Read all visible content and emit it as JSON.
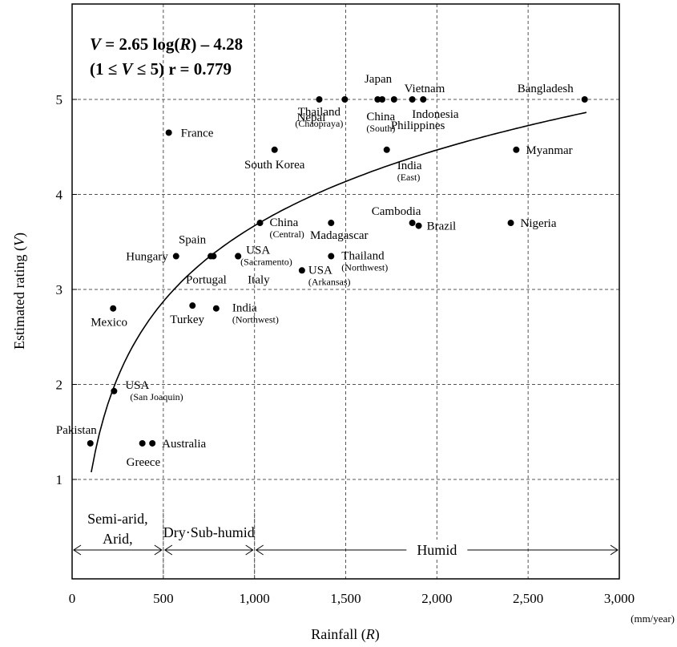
{
  "chart_data": {
    "type": "scatter",
    "xlabel_text": "Rainfall (",
    "xlabel_var": "R",
    "xlabel_close": ")",
    "ylabel_text": "Estimated rating (",
    "ylabel_var": "V",
    "ylabel_close": ")",
    "unit": "(mm/year)",
    "xlim": [
      0,
      3000
    ],
    "ylim": [
      0,
      6
    ],
    "x_ticks": [
      {
        "value": 0,
        "label": "0"
      },
      {
        "value": 500,
        "label": "500"
      },
      {
        "value": 1000,
        "label": "1,000"
      },
      {
        "value": 1500,
        "label": "1,500"
      },
      {
        "value": 2000,
        "label": "2,000"
      },
      {
        "value": 2500,
        "label": "2,500"
      },
      {
        "value": 3000,
        "label": "3,000"
      }
    ],
    "y_ticks": [
      {
        "value": 1,
        "label": "1"
      },
      {
        "value": 2,
        "label": "2"
      },
      {
        "value": 3,
        "label": "3"
      },
      {
        "value": 4,
        "label": "4"
      },
      {
        "value": 5,
        "label": "5"
      }
    ],
    "grid": true,
    "equation": {
      "line1_var": "V",
      "line1_mid": " = 2.65 log(",
      "line1_var2": "R",
      "line1_end": ") – 4.28",
      "line2_open": "(1 ≤ ",
      "line2_var": "V",
      "line2_end": " ≤ 5) r = 0.779"
    },
    "fit": {
      "a": 2.65,
      "b": -4.28,
      "x_range": [
        105,
        2820
      ]
    },
    "regions": [
      {
        "label_lines": [
          "Semi-arid,",
          "Arid,"
        ],
        "x_from": 0,
        "x_to": 500
      },
      {
        "label_lines": [
          "Dry·Sub-humid"
        ],
        "x_from": 500,
        "x_to": 1000
      },
      {
        "label_lines": [
          "Humid"
        ],
        "x_from": 1000,
        "x_to": 3000
      }
    ],
    "points": [
      {
        "name": "Pakistan",
        "sub": "",
        "x": 100,
        "y": 1.38
      },
      {
        "name": "Australia",
        "sub": "",
        "x": 440,
        "y": 1.38
      },
      {
        "name": "Greece",
        "sub": "",
        "x": 385,
        "y": 1.38
      },
      {
        "name": "USA",
        "sub": "(San Joaquin)",
        "x": 230,
        "y": 1.93
      },
      {
        "name": "Mexico",
        "sub": "",
        "x": 225,
        "y": 2.8
      },
      {
        "name": "Turkey",
        "sub": "",
        "x": 660,
        "y": 2.83
      },
      {
        "name": "India",
        "sub": "(Northwest)",
        "x": 790,
        "y": 2.8
      },
      {
        "name": "Hungary",
        "sub": "",
        "x": 570,
        "y": 3.35
      },
      {
        "name": "Spain",
        "sub": "",
        "x": 760,
        "y": 3.35
      },
      {
        "name": "Portugal",
        "sub": "",
        "x": 775,
        "y": 3.35
      },
      {
        "name": "USA",
        "sub": "(Sacramento)",
        "x": 910,
        "y": 3.35
      },
      {
        "name": "Italy",
        "sub": "",
        "x": 910,
        "y": 3.35
      },
      {
        "name": "China",
        "sub": "(Central)",
        "x": 1030,
        "y": 3.7
      },
      {
        "name": "France",
        "sub": "",
        "x": 530,
        "y": 4.65
      },
      {
        "name": "South Korea",
        "sub": "",
        "x": 1110,
        "y": 4.47
      },
      {
        "name": "Nepal",
        "sub": "",
        "x": 1355,
        "y": 5.0
      },
      {
        "name": "Thailand",
        "sub": "(Chaopraya)",
        "x": 1495,
        "y": 5.0
      },
      {
        "name": "China",
        "sub": "(South)",
        "x": 1675,
        "y": 5.0
      },
      {
        "name": "Japan",
        "sub": "",
        "x": 1700,
        "y": 5.0
      },
      {
        "name": "Philippines",
        "sub": "",
        "x": 1765,
        "y": 5.0
      },
      {
        "name": "Vietnam",
        "sub": "",
        "x": 1865,
        "y": 5.0
      },
      {
        "name": "Indonesia",
        "sub": "",
        "x": 1925,
        "y": 5.0
      },
      {
        "name": "Bangladesh",
        "sub": "",
        "x": 2810,
        "y": 5.0
      },
      {
        "name": "Madagascar",
        "sub": "",
        "x": 1420,
        "y": 3.7
      },
      {
        "name": "Thailand",
        "sub": "(Northwest)",
        "x": 1420,
        "y": 3.35
      },
      {
        "name": "USA",
        "sub": "(Arkansas)",
        "x": 1260,
        "y": 3.2
      },
      {
        "name": "India",
        "sub": "(East)",
        "x": 1725,
        "y": 4.47
      },
      {
        "name": "Cambodia",
        "sub": "",
        "x": 1865,
        "y": 3.7
      },
      {
        "name": "Brazil",
        "sub": "",
        "x": 1900,
        "y": 3.67
      },
      {
        "name": "Myanmar",
        "sub": "",
        "x": 2435,
        "y": 4.47
      },
      {
        "name": "Nigeria",
        "sub": "",
        "x": 2405,
        "y": 3.7
      }
    ]
  }
}
